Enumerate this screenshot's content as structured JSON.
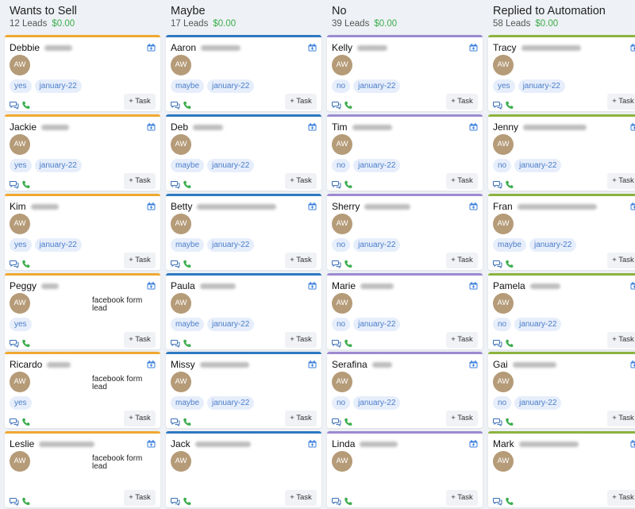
{
  "columns": [
    {
      "title": "Wants to Sell",
      "leads": "12 Leads",
      "amount": "$0.00",
      "color": "#f0a830",
      "cards": [
        {
          "name": "Debbie",
          "blur": 35,
          "avatar": "AW",
          "note": "",
          "tags": [
            "yes",
            "january-22"
          ]
        },
        {
          "name": "Jackie",
          "blur": 35,
          "avatar": "AW",
          "note": "",
          "tags": [
            "yes",
            "january-22"
          ]
        },
        {
          "name": "Kim",
          "blur": 35,
          "avatar": "AW",
          "note": "",
          "tags": [
            "yes",
            "january-22"
          ]
        },
        {
          "name": "Peggy",
          "blur": 22,
          "avatar": "AW",
          "note": "facebook form lead",
          "tags": [
            "yes"
          ]
        },
        {
          "name": "Ricardo",
          "blur": 30,
          "avatar": "AW",
          "note": "facebook form lead",
          "tags": [
            "yes"
          ]
        },
        {
          "name": "Leslie",
          "blur": 70,
          "avatar": "AW",
          "note": "facebook form lead",
          "tags": []
        }
      ]
    },
    {
      "title": "Maybe",
      "leads": "17 Leads",
      "amount": "$0.00",
      "color": "#2e78c2",
      "cards": [
        {
          "name": "Aaron",
          "blur": 50,
          "avatar": "AW",
          "note": "",
          "tags": [
            "maybe",
            "january-22"
          ]
        },
        {
          "name": "Deb",
          "blur": 38,
          "avatar": "AW",
          "note": "",
          "tags": [
            "maybe",
            "january-22"
          ]
        },
        {
          "name": "Betty",
          "blur": 100,
          "avatar": "AW",
          "note": "",
          "tags": [
            "maybe",
            "january-22"
          ]
        },
        {
          "name": "Paula",
          "blur": 45,
          "avatar": "AW",
          "note": "",
          "tags": [
            "maybe",
            "january-22"
          ]
        },
        {
          "name": "Missy",
          "blur": 62,
          "avatar": "AW",
          "note": "",
          "tags": [
            "maybe",
            "january-22"
          ]
        },
        {
          "name": "Jack",
          "blur": 70,
          "avatar": "AW",
          "note": "",
          "tags": []
        }
      ]
    },
    {
      "title": "No",
      "leads": "39 Leads",
      "amount": "$0.00",
      "color": "#9c8ad0",
      "cards": [
        {
          "name": "Kelly",
          "blur": 38,
          "avatar": "AW",
          "note": "",
          "tags": [
            "no",
            "january-22"
          ]
        },
        {
          "name": "Tim",
          "blur": 50,
          "avatar": "AW",
          "note": "",
          "tags": [
            "no",
            "january-22"
          ]
        },
        {
          "name": "Sherry",
          "blur": 58,
          "avatar": "AW",
          "note": "",
          "tags": [
            "no",
            "january-22"
          ]
        },
        {
          "name": "Marie",
          "blur": 42,
          "avatar": "AW",
          "note": "",
          "tags": [
            "no",
            "january-22"
          ]
        },
        {
          "name": "Serafina",
          "blur": 25,
          "avatar": "AW",
          "note": "",
          "tags": [
            "no",
            "january-22"
          ]
        },
        {
          "name": "Linda",
          "blur": 48,
          "avatar": "AW",
          "note": "",
          "tags": []
        }
      ]
    },
    {
      "title": "Replied to Automation",
      "leads": "58 Leads",
      "amount": "$0.00",
      "color": "#8cb33e",
      "cards": [
        {
          "name": "Tracy",
          "blur": 75,
          "avatar": "AW",
          "note": "",
          "tags": [
            "yes",
            "january-22"
          ]
        },
        {
          "name": "Jenny",
          "blur": 80,
          "avatar": "AW",
          "note": "",
          "tags": [
            "no",
            "january-22"
          ]
        },
        {
          "name": "Fran",
          "blur": 100,
          "avatar": "AW",
          "note": "",
          "tags": [
            "maybe",
            "january-22"
          ]
        },
        {
          "name": "Pamela",
          "blur": 38,
          "avatar": "AW",
          "note": "",
          "tags": [
            "no",
            "january-22"
          ]
        },
        {
          "name": "Gai",
          "blur": 55,
          "avatar": "AW",
          "note": "",
          "tags": [
            "no",
            "january-22"
          ]
        },
        {
          "name": "Mark",
          "blur": 75,
          "avatar": "AW",
          "note": "",
          "tags": []
        }
      ]
    }
  ],
  "task_label": "+ Task",
  "icons": {
    "calendar": "calendar-plus-icon",
    "chat": "chat-bubbles-icon",
    "phone": "phone-icon"
  },
  "colors": {
    "tag_bg": "#e7eefb",
    "tag_text": "#4a7ec9",
    "amount": "#3cae4d",
    "phone": "#3cae4d",
    "calendar": "#3a7fdc"
  }
}
